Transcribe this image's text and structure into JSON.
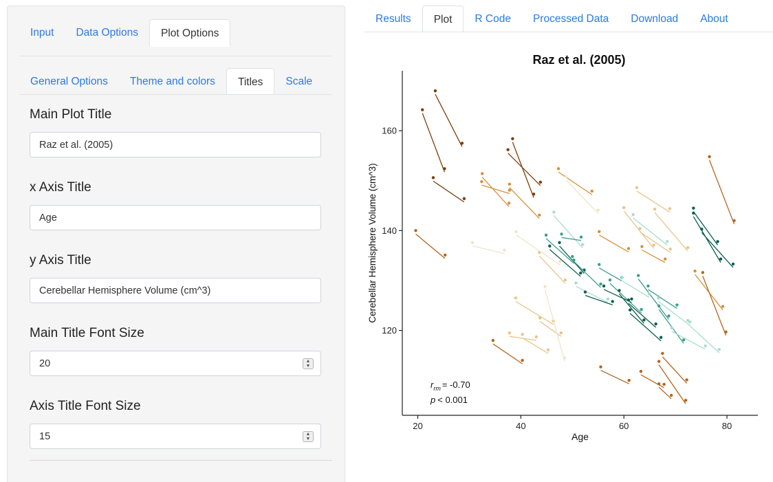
{
  "sidebar": {
    "main_tabs": [
      {
        "label": "Input",
        "active": false
      },
      {
        "label": "Data Options",
        "active": false
      },
      {
        "label": "Plot Options",
        "active": true
      }
    ],
    "sub_tabs": [
      {
        "label": "General Options",
        "active": false
      },
      {
        "label": "Theme and colors",
        "active": false
      },
      {
        "label": "Titles",
        "active": true
      },
      {
        "label": "Scale",
        "active": false
      }
    ],
    "fields": {
      "main_title": {
        "label": "Main Plot Title",
        "value": "Raz et al. (2005)"
      },
      "x_title": {
        "label": "x Axis Title",
        "value": "Age"
      },
      "y_title": {
        "label": "y Axis Title",
        "value": "Cerebellar Hemisphere Volume (cm^3)"
      },
      "main_font": {
        "label": "Main Title Font Size",
        "value": "20"
      },
      "axis_font": {
        "label": "Axis Title Font Size",
        "value": "15"
      }
    }
  },
  "output_tabs": [
    {
      "label": "Results",
      "active": false
    },
    {
      "label": "Plot",
      "active": true
    },
    {
      "label": "R Code",
      "active": false
    },
    {
      "label": "Processed Data",
      "active": false
    },
    {
      "label": "Download",
      "active": false
    },
    {
      "label": "About",
      "active": false
    }
  ],
  "chart_data": {
    "type": "scatter",
    "title": "Raz et al. (2005)",
    "xlabel": "Age",
    "ylabel": "Cerebellar Hemisphere Volume (cm^3)",
    "xlim": [
      17,
      86
    ],
    "ylim": [
      103,
      172
    ],
    "xticks": [
      20,
      40,
      60,
      80
    ],
    "yticks": [
      120,
      140,
      160
    ],
    "grid": false,
    "annotation": {
      "rrm": "= -0.70",
      "p": "< 0.001"
    },
    "colors": {
      "dark_brown": "#7a3f0b",
      "brown": "#b5651d",
      "orange": "#d4913b",
      "tan": "#e8c48a",
      "pale": "#f0e4c8",
      "mint": "#a8ddd0",
      "teal": "#3f9e8a",
      "dark_teal": "#0d5e4e"
    },
    "subjects": [
      {
        "c": "dark_brown",
        "x": [
          20.9,
          25.2
        ],
        "y": [
          164.2,
          152.4
        ]
      },
      {
        "c": "dark_brown",
        "x": [
          23.4,
          28.6
        ],
        "y": [
          168.0,
          157.5
        ]
      },
      {
        "c": "dark_brown",
        "x": [
          23.0,
          29.0
        ],
        "y": [
          150.6,
          146.4
        ]
      },
      {
        "c": "brown",
        "x": [
          19.6,
          25.3
        ],
        "y": [
          140.0,
          135.1
        ]
      },
      {
        "c": "dark_brown",
        "x": [
          37.5,
          43.8
        ],
        "y": [
          156.2,
          149.7
        ]
      },
      {
        "c": "dark_brown",
        "x": [
          38.4,
          42.5
        ],
        "y": [
          158.4,
          147.3
        ]
      },
      {
        "c": "brown",
        "x": [
          34.6,
          40.3
        ],
        "y": [
          118.0,
          114.0
        ]
      },
      {
        "c": "orange",
        "x": [
          32.5,
          37.7
        ],
        "y": [
          151.4,
          145.5
        ]
      },
      {
        "c": "orange",
        "x": [
          37.8,
          43.6
        ],
        "y": [
          149.3,
          143.1
        ]
      },
      {
        "c": "orange",
        "x": [
          32.4,
          37.8
        ],
        "y": [
          149.8,
          148.1
        ]
      },
      {
        "c": "orange",
        "x": [
          47.3,
          53.8
        ],
        "y": [
          152.4,
          147.9
        ]
      },
      {
        "c": "tan",
        "x": [
          43.6,
          48.6
        ],
        "y": [
          135.6,
          130.1
        ]
      },
      {
        "c": "tan",
        "x": [
          39.0,
          46.3
        ],
        "y": [
          126.5,
          121.9
        ]
      },
      {
        "c": "tan",
        "x": [
          37.8,
          43.0
        ],
        "y": [
          119.5,
          118.7
        ]
      },
      {
        "c": "tan",
        "x": [
          40.3,
          45.3
        ],
        "y": [
          119.2,
          116.1
        ]
      },
      {
        "c": "tan",
        "x": [
          43.7,
          47.8
        ],
        "y": [
          122.5,
          119.5
        ]
      },
      {
        "c": "pale",
        "x": [
          30.6,
          36.8
        ],
        "y": [
          137.6,
          136.1
        ]
      },
      {
        "c": "pale",
        "x": [
          39.1,
          47.6
        ],
        "y": [
          139.8,
          133.8
        ]
      },
      {
        "c": "pale",
        "x": [
          44.7,
          48.5
        ],
        "y": [
          128.8,
          114.5
        ]
      },
      {
        "c": "pale",
        "x": [
          48.8,
          55.0
        ],
        "y": [
          150.8,
          144.1
        ]
      },
      {
        "c": "mint",
        "x": [
          46.4,
          52.0
        ],
        "y": [
          143.7,
          137.2
        ]
      },
      {
        "c": "mint",
        "x": [
          50.7,
          56.9
        ],
        "y": [
          129.5,
          126.3
        ]
      },
      {
        "c": "teal",
        "x": [
          44.9,
          50.3
        ],
        "y": [
          139.1,
          134.1
        ]
      },
      {
        "c": "dark_teal",
        "x": [
          45.6,
          51.6
        ],
        "y": [
          136.9,
          131.5
        ]
      },
      {
        "c": "dark_teal",
        "x": [
          47.5,
          52.3
        ],
        "y": [
          137.6,
          132.1
        ]
      },
      {
        "c": "teal",
        "x": [
          47.9,
          51.7
        ],
        "y": [
          139.3,
          138.7
        ]
      },
      {
        "c": "teal",
        "x": [
          50.0,
          55.5
        ],
        "y": [
          134.8,
          129.3
        ]
      },
      {
        "c": "dark_teal",
        "x": [
          52.5,
          57.8
        ],
        "y": [
          127.7,
          125.8
        ]
      },
      {
        "c": "teal",
        "x": [
          55.2,
          59.6
        ],
        "y": [
          133.2,
          130.6
        ]
      },
      {
        "c": "dark_teal",
        "x": [
          56.1,
          61.5
        ],
        "y": [
          128.9,
          126.3
        ]
      },
      {
        "c": "teal",
        "x": [
          57.3,
          63.4
        ],
        "y": [
          130.1,
          124.2
        ]
      },
      {
        "c": "dark_teal",
        "x": [
          59.1,
          63.9
        ],
        "y": [
          128.0,
          122.1
        ]
      },
      {
        "c": "dark_teal",
        "x": [
          60.9,
          66.2
        ],
        "y": [
          126.1,
          121.3
        ]
      },
      {
        "c": "dark_teal",
        "x": [
          61.2,
          67.2
        ],
        "y": [
          124.1,
          118.6
        ]
      },
      {
        "c": "teal",
        "x": [
          62.8,
          68.7
        ],
        "y": [
          131.0,
          122.9
        ]
      },
      {
        "c": "teal",
        "x": [
          64.7,
          70.3
        ],
        "y": [
          128.9,
          125.1
        ]
      },
      {
        "c": "mint",
        "x": [
          59.7,
          64.9
        ],
        "y": [
          130.6,
          127.3
        ]
      },
      {
        "c": "mint",
        "x": [
          61.8,
          68.4
        ],
        "y": [
          143.2,
          137.8
        ]
      },
      {
        "c": "mint",
        "x": [
          66.7,
          72.8
        ],
        "y": [
          126.5,
          121.7
        ]
      },
      {
        "c": "teal",
        "x": [
          66.8,
          71.6
        ],
        "y": [
          124.9,
          118.1
        ]
      },
      {
        "c": "mint",
        "x": [
          69.3,
          75.8
        ],
        "y": [
          120.5,
          116.9
        ]
      },
      {
        "c": "mint",
        "x": [
          72.4,
          78.5
        ],
        "y": [
          122.0,
          116.2
        ]
      },
      {
        "c": "dark_teal",
        "x": [
          73.5,
          78.2
        ],
        "y": [
          144.5,
          137.8
        ]
      },
      {
        "c": "dark_teal",
        "x": [
          73.5,
          78.8
        ],
        "y": [
          143.5,
          134.3
        ]
      },
      {
        "c": "dark_teal",
        "x": [
          75.1,
          81.2
        ],
        "y": [
          140.3,
          133.3
        ]
      },
      {
        "c": "tan",
        "x": [
          62.5,
          68.9
        ],
        "y": [
          148.6,
          144.4
        ]
      },
      {
        "c": "tan",
        "x": [
          63.1,
          69.0
        ],
        "y": [
          140.4,
          136.3
        ]
      },
      {
        "c": "tan",
        "x": [
          66.0,
          72.4
        ],
        "y": [
          144.3,
          136.6
        ]
      },
      {
        "c": "tan",
        "x": [
          60.0,
          65.8
        ],
        "y": [
          144.6,
          137.1
        ]
      },
      {
        "c": "orange",
        "x": [
          55.2,
          60.9
        ],
        "y": [
          139.8,
          136.4
        ]
      },
      {
        "c": "orange",
        "x": [
          63.5,
          68.0
        ],
        "y": [
          136.8,
          134.3
        ]
      },
      {
        "c": "orange",
        "x": [
          73.8,
          79.2
        ],
        "y": [
          131.9,
          124.8
        ]
      },
      {
        "c": "brown",
        "x": [
          55.5,
          61.0
        ],
        "y": [
          112.7,
          110.0
        ]
      },
      {
        "c": "brown",
        "x": [
          63.3,
          67.8
        ],
        "y": [
          111.8,
          109.2
        ]
      },
      {
        "c": "brown",
        "x": [
          66.8,
          72.0
        ],
        "y": [
          113.8,
          106.0
        ]
      },
      {
        "c": "brown",
        "x": [
          66.8,
          69.2
        ],
        "y": [
          109.3,
          107.0
        ]
      },
      {
        "c": "brown",
        "x": [
          67.5,
          72.2
        ],
        "y": [
          115.4,
          110.1
        ]
      },
      {
        "c": "brown",
        "x": [
          76.6,
          81.4
        ],
        "y": [
          154.8,
          142.0
        ]
      },
      {
        "c": "brown",
        "x": [
          75.3,
          79.8
        ],
        "y": [
          131.6,
          119.7
        ]
      }
    ]
  }
}
